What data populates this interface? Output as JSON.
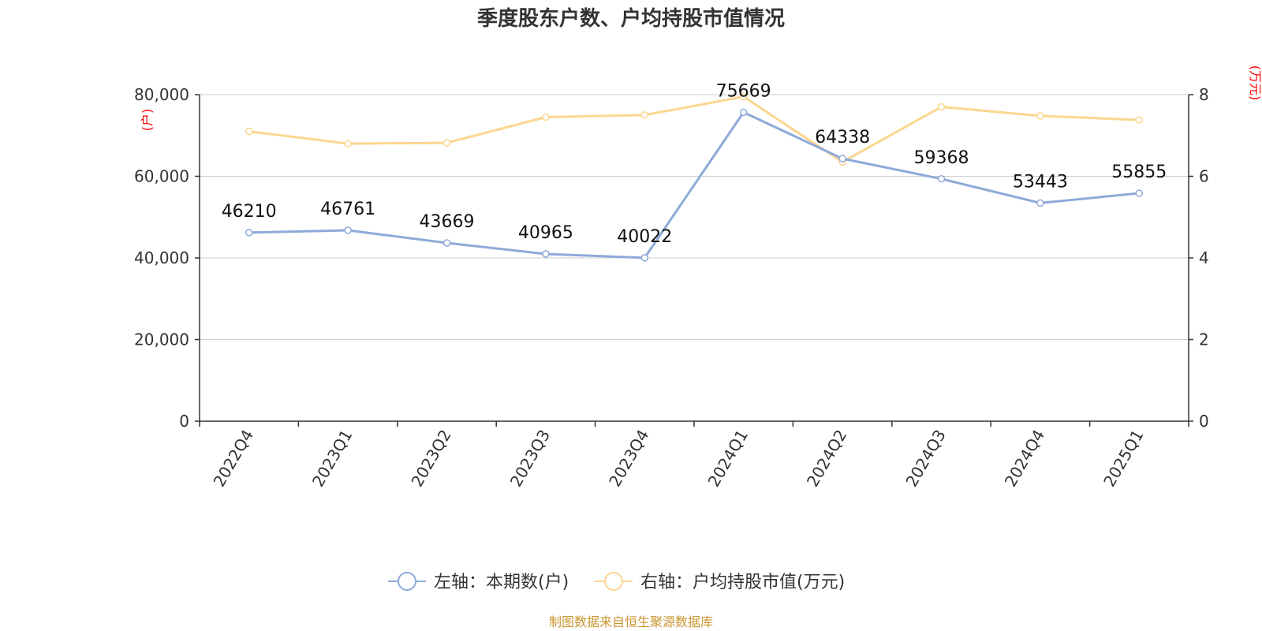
{
  "chart_data": {
    "type": "line",
    "title": "季度股东户数、户均持股市值情况",
    "categories": [
      "2022Q4",
      "2023Q1",
      "2023Q2",
      "2023Q3",
      "2023Q4",
      "2024Q1",
      "2024Q2",
      "2024Q3",
      "2024Q4",
      "2025Q1"
    ],
    "left_axis": {
      "unit_label": "(户)",
      "ylim": [
        0,
        80000
      ],
      "ticks": [
        0,
        20000,
        40000,
        60000,
        80000
      ],
      "tick_labels": [
        "0",
        "20,000",
        "40,000",
        "60,000",
        "80,000"
      ]
    },
    "right_axis": {
      "unit_label": "(万元)",
      "ylim": [
        0,
        8
      ],
      "ticks": [
        0,
        2,
        4,
        6,
        8
      ],
      "tick_labels": [
        "0",
        "2",
        "4",
        "6",
        "8"
      ]
    },
    "series": [
      {
        "name": "左轴：本期数(户)",
        "axis": "left",
        "color": "#8eaad9",
        "values": [
          46210,
          46761,
          43669,
          40965,
          40022,
          75669,
          64338,
          59368,
          53443,
          55855
        ],
        "data_labels": [
          "46210",
          "46761",
          "43669",
          "40965",
          "40022",
          "75669",
          "64338",
          "59368",
          "53443",
          "55855"
        ]
      },
      {
        "name": "右轴：户均持股市值(万元)",
        "axis": "right",
        "color": "#fcd68f",
        "values": [
          7.1,
          6.8,
          6.82,
          7.45,
          7.5,
          7.95,
          6.35,
          7.7,
          7.48,
          7.38
        ]
      }
    ],
    "grid": true,
    "legend_position": "bottom-center"
  },
  "footer": {
    "source": "制图数据来自恒生聚源数据库"
  }
}
